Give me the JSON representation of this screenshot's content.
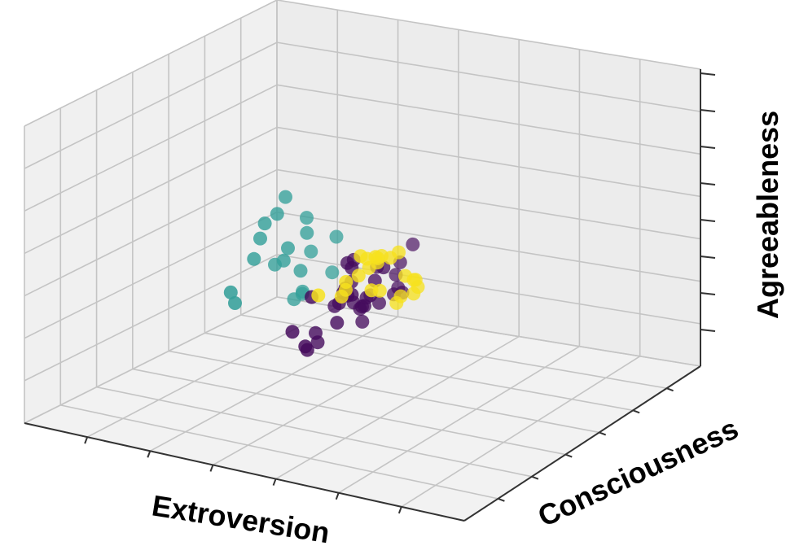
{
  "chart_data": {
    "type": "scatter",
    "projection": "3d",
    "title": "",
    "xlabel": "Extroversion",
    "ylabel": "Consciousness",
    "zlabel": "Agreeableness",
    "ticks_labeled": false,
    "grid": true,
    "legend": "none",
    "series": [
      {
        "color": "#35a09a",
        "points": [
          [
            0.1,
            0.2,
            0.8
          ],
          [
            0.1,
            0.1,
            0.95
          ],
          [
            0.2,
            0.4,
            0.75
          ],
          [
            0.35,
            0.1,
            0.55
          ],
          [
            0.15,
            0.35,
            0.4
          ],
          [
            0.1,
            0.05,
            0.35
          ],
          [
            0.3,
            0.3,
            0.3
          ],
          [
            0.2,
            0.2,
            0.15
          ],
          [
            0.4,
            0.35,
            0.55
          ],
          [
            0.45,
            0.05,
            0.3
          ],
          [
            0.5,
            0.1,
            0.25
          ],
          [
            0.05,
            0.15,
            0.1
          ],
          [
            0.3,
            0.1,
            0.7
          ],
          [
            0.5,
            0.35,
            0.8
          ],
          [
            0.25,
            0.15,
            0.9
          ],
          [
            0.18,
            0.05,
            0.75
          ],
          [
            0.35,
            0.35,
            0.85
          ],
          [
            0.45,
            0.3,
            0.65
          ],
          [
            0.15,
            0.25,
            0.55
          ]
        ]
      },
      {
        "color": "#440a5c",
        "points": [
          [
            0.35,
            0.85,
            0.9
          ],
          [
            0.35,
            0.65,
            0.4
          ],
          [
            0.55,
            0.6,
            0.4
          ],
          [
            0.8,
            0.55,
            0.3
          ],
          [
            0.65,
            0.7,
            0.6
          ],
          [
            0.7,
            0.75,
            0.9
          ],
          [
            0.5,
            0.7,
            0.4
          ],
          [
            0.75,
            0.85,
            0.45
          ],
          [
            0.9,
            0.7,
            0.7
          ],
          [
            0.95,
            0.9,
            0.8
          ],
          [
            1.0,
            0.95,
            0.85
          ],
          [
            0.5,
            0.65,
            0.6
          ],
          [
            0.6,
            0.75,
            0.45
          ],
          [
            0.85,
            0.8,
            0.65
          ],
          [
            0.4,
            0.8,
            0.65
          ],
          [
            0.9,
            0.95,
            0.7
          ],
          [
            0.55,
            0.9,
            0.65
          ],
          [
            0.45,
            0.85,
            0.8
          ],
          [
            0.65,
            0.85,
            0.75
          ],
          [
            0.6,
            0.55,
            0.1
          ],
          [
            0.75,
            0.8,
            0.9
          ],
          [
            0.8,
            0.8,
            0.75
          ],
          [
            0.95,
            0.85,
            0.55
          ],
          [
            0.65,
            0.75,
            0.9
          ],
          [
            0.55,
            0.8,
            0.8
          ],
          [
            0.4,
            0.6,
            0.35
          ],
          [
            0.7,
            0.6,
            0.25
          ],
          [
            0.85,
            0.65,
            0.2
          ],
          [
            0.95,
            0.7,
            0.3
          ],
          [
            0.5,
            0.85,
            0.55
          ],
          [
            0.7,
            0.9,
            0.6
          ],
          [
            0.8,
            0.9,
            0.7
          ],
          [
            0.6,
            0.95,
            0.65
          ],
          [
            0.75,
            0.95,
            0.95
          ]
        ]
      },
      {
        "color": "#f6e11d",
        "points": [
          [
            1.55,
            1.4,
            1.6
          ],
          [
            1.3,
            1.2,
            1.4
          ],
          [
            1.4,
            1.3,
            1.5
          ],
          [
            1.25,
            1.4,
            1.25
          ],
          [
            1.45,
            1.25,
            1.35
          ],
          [
            1.3,
            1.1,
            1.1
          ],
          [
            1.2,
            1.15,
            1.25
          ],
          [
            1.35,
            1.2,
            1.45
          ],
          [
            1.5,
            1.5,
            1.45
          ],
          [
            1.6,
            1.6,
            1.5
          ],
          [
            1.1,
            1.15,
            1.3
          ],
          [
            1.2,
            1.3,
            1.05
          ],
          [
            1.35,
            1.45,
            1.2
          ],
          [
            1.4,
            1.5,
            1.3
          ],
          [
            1.45,
            1.35,
            1.25
          ],
          [
            1.15,
            1.25,
            0.95
          ],
          [
            1.25,
            1.05,
            1.0
          ],
          [
            1.45,
            1.4,
            1.55
          ],
          [
            1.55,
            1.25,
            1.35
          ],
          [
            1.3,
            1.35,
            1.5
          ],
          [
            1.05,
            1.1,
            1.2
          ],
          [
            1.35,
            1.0,
            1.05
          ],
          [
            1.6,
            1.4,
            1.35
          ]
        ]
      }
    ]
  }
}
